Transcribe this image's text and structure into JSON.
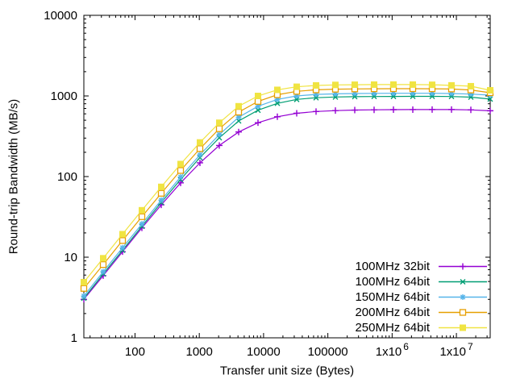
{
  "chart_data": {
    "type": "line",
    "title": "",
    "xlabel": "Transfer unit size (Bytes)",
    "ylabel": "Round-trip Bandwidth (MB/s)",
    "xscale": "log",
    "yscale": "log",
    "xlim": [
      16,
      33554432
    ],
    "ylim": [
      1,
      10000
    ],
    "grid": false,
    "legend_position": "inside bottom-right",
    "axis_color": "#000000",
    "x_ticks": [
      {
        "value": 100,
        "text": "100",
        "sup": ""
      },
      {
        "value": 1000,
        "text": "1000",
        "sup": ""
      },
      {
        "value": 10000,
        "text": "10000",
        "sup": ""
      },
      {
        "value": 100000,
        "text": "100000",
        "sup": ""
      },
      {
        "value": 1000000,
        "text": "1x10",
        "sup": "6"
      },
      {
        "value": 10000000,
        "text": "1x10",
        "sup": "7"
      }
    ],
    "y_ticks": [
      {
        "value": 1,
        "text": "1"
      },
      {
        "value": 10,
        "text": "10"
      },
      {
        "value": 100,
        "text": "100"
      },
      {
        "value": 1000,
        "text": "1000"
      },
      {
        "value": 10000,
        "text": "10000"
      }
    ],
    "x": [
      16,
      32,
      64,
      128,
      256,
      512,
      1024,
      2048,
      4096,
      8192,
      16384,
      32768,
      65536,
      131072,
      262144,
      524288,
      1048576,
      2097152,
      4194304,
      8388608,
      16777216,
      33554432
    ],
    "series": [
      {
        "name": "100MHz 32bit",
        "color": "#9400d3",
        "marker": "plus",
        "values": [
          3.0,
          5.9,
          11.7,
          23.1,
          44.6,
          83.5,
          148,
          243,
          357,
          466,
          552,
          610,
          641,
          658,
          668,
          673,
          676,
          677,
          678,
          678,
          672,
          655
        ]
      },
      {
        "name": "100MHz 64bit",
        "color": "#009e73",
        "marker": "cross",
        "values": [
          3.1,
          6.2,
          12.2,
          24.2,
          47.7,
          92,
          172,
          303,
          490,
          665,
          810,
          905,
          950,
          970,
          980,
          985,
          987,
          988,
          988,
          985,
          965,
          915
        ]
      },
      {
        "name": "150MHz 64bit",
        "color": "#56b4e9",
        "marker": "asterisk",
        "values": [
          3.3,
          6.6,
          13.1,
          25.9,
          51,
          99,
          186,
          332,
          545,
          745,
          905,
          1000,
          1045,
          1062,
          1071,
          1076,
          1078,
          1079,
          1078,
          1072,
          1055,
          1023
        ]
      },
      {
        "name": "200MHz 64bit",
        "color": "#e69f00",
        "marker": "open-square",
        "values": [
          4.1,
          8.1,
          16.1,
          31.8,
          62,
          119,
          222,
          392,
          630,
          855,
          1035,
          1140,
          1190,
          1212,
          1222,
          1227,
          1230,
          1230,
          1228,
          1220,
          1185,
          1096
        ]
      },
      {
        "name": "250MHz 64bit",
        "color": "#f0e442",
        "marker": "filled-square",
        "values": [
          4.9,
          9.7,
          19.3,
          38.2,
          74.5,
          143,
          265,
          465,
          745,
          1000,
          1190,
          1300,
          1350,
          1370,
          1378,
          1382,
          1384,
          1383,
          1376,
          1352,
          1320,
          1175
        ]
      }
    ]
  }
}
